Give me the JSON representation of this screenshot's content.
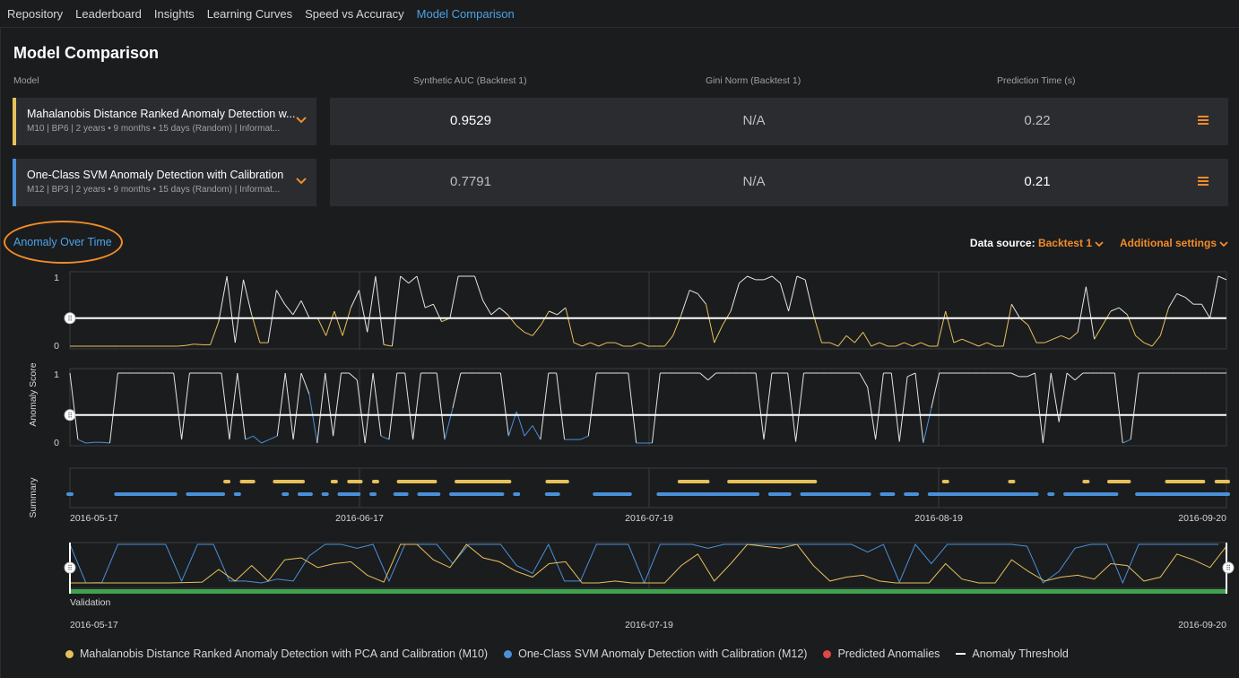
{
  "nav": {
    "tabs": [
      "Repository",
      "Leaderboard",
      "Insights",
      "Learning Curves",
      "Speed vs Accuracy",
      "Model Comparison"
    ],
    "active": "Model Comparison"
  },
  "page_title": "Model Comparison",
  "table": {
    "headers": {
      "model": "Model",
      "auc": "Synthetic AUC (Backtest 1)",
      "gini": "Gini Norm (Backtest 1)",
      "time": "Prediction Time (s)"
    },
    "rows": [
      {
        "name": "Mahalanobis Distance Ranked Anomaly Detection w...",
        "meta": "M10 | BP6 | 2 years • 9 months • 15 days (Random) | Informat...",
        "color": "#e6c15a",
        "auc": "0.9529",
        "gini": "N/A",
        "time": "0.22"
      },
      {
        "name": "One-Class SVM Anomaly Detection with Calibration",
        "meta": "M12 | BP3 | 2 years • 9 months • 15 days (Random) | Informat...",
        "color": "#4a90d9",
        "auc": "0.7791",
        "gini": "N/A",
        "time": "0.21"
      }
    ]
  },
  "section": {
    "title": "Anomaly Over Time"
  },
  "controls": {
    "data_source_label": "Data source:",
    "data_source_value": "Backtest 1",
    "additional_settings": "Additional settings"
  },
  "chart_data": {
    "type": "line",
    "title": "Anomaly Over Time",
    "ylabel": "Anomaly Score",
    "ylim": [
      0,
      1
    ],
    "y_ticks": [
      "1",
      "0"
    ],
    "x_ticks": [
      "2016-05-17",
      "2016-06-17",
      "2016-07-19",
      "2016-08-19",
      "2016-09-20"
    ],
    "summary_label": "Summary",
    "validation_label": "Validation",
    "overview_x_ticks": [
      "2016-05-17",
      "2016-07-19",
      "2016-09-20"
    ],
    "threshold": 0.4,
    "series": [
      {
        "name": "Mahalanobis Distance Ranked Anomaly Detection with PCA and Calibration (M10)",
        "color": "#e6c15a",
        "values": [
          0,
          0,
          0,
          0,
          0,
          0,
          0,
          0,
          0,
          0,
          0,
          0,
          0,
          0,
          0.01,
          0.03,
          0.02,
          0.02,
          0.35,
          1,
          0.05,
          0.95,
          0.45,
          0.05,
          0.05,
          0.8,
          0.6,
          0.45,
          0.65,
          0.4,
          0.4,
          0.15,
          0.5,
          0.15,
          0.55,
          0.8,
          0.2,
          1,
          0.02,
          0,
          1,
          0.9,
          1,
          0.55,
          0.6,
          0.35,
          0.4,
          1,
          1,
          1,
          0.65,
          0.45,
          0.55,
          0.45,
          0.3,
          0.2,
          0.15,
          0.3,
          0.5,
          0.45,
          0.55,
          0.05,
          0,
          0.05,
          0,
          0.05,
          0.05,
          0,
          0,
          0.05,
          0,
          0,
          0,
          0.15,
          0.45,
          0.8,
          0.75,
          0.6,
          0.05,
          0.3,
          0.5,
          0.9,
          1,
          0.95,
          0.95,
          1,
          0.9,
          0.5,
          1,
          0.95,
          0.45,
          0.05,
          0.05,
          0,
          0.15,
          0.05,
          0.2,
          0,
          0.05,
          0,
          0,
          0.05,
          0,
          0.05,
          0,
          0,
          0.5,
          0.05,
          0.1,
          0.05,
          0,
          0.05,
          0,
          0,
          0.6,
          0.4,
          0.3,
          0.05,
          0.05,
          0.1,
          0.15,
          0.1,
          0.2,
          0.85,
          0.1,
          0.3,
          0.5,
          0.55,
          0.45,
          0.15,
          0.05,
          0,
          0.15,
          0.55,
          0.75,
          0.7,
          0.6,
          0.6,
          0.4,
          1,
          0.95
        ]
      },
      {
        "name": "One-Class SVM Anomaly Detection with Calibration (M12)",
        "color": "#4a90d9",
        "values": [
          1,
          0.05,
          0,
          0.01,
          0.01,
          0,
          1,
          1,
          1,
          1,
          1,
          1,
          1,
          1,
          0.05,
          1,
          1,
          1,
          1,
          1,
          0.05,
          1,
          0.05,
          0.1,
          0,
          0.05,
          0.1,
          1,
          0.05,
          1,
          0.7,
          0,
          1,
          0.1,
          1,
          1,
          0.9,
          0,
          1,
          0.1,
          0.05,
          1,
          1,
          0.05,
          1,
          1,
          1,
          0.05,
          0.5,
          1,
          1,
          1,
          1,
          1,
          1,
          0.1,
          0.45,
          0.1,
          0.25,
          0.05,
          1,
          1,
          0.05,
          0.05,
          0.05,
          0.1,
          1,
          1,
          1,
          1,
          1,
          0,
          0,
          0,
          1,
          1,
          1,
          1,
          1,
          1,
          0.9,
          1,
          1,
          1,
          1,
          1,
          1,
          0.05,
          1,
          1,
          1,
          0.02,
          1,
          1,
          1,
          1,
          1,
          1,
          1,
          1,
          0.8,
          0.05,
          1,
          1,
          0.02,
          0.95,
          1,
          0,
          0.5,
          1,
          1,
          1,
          1,
          1,
          1,
          1,
          1,
          1,
          1,
          0.95,
          0.95,
          1,
          0,
          1,
          0.3,
          1,
          0.9,
          1,
          1,
          1,
          1,
          1,
          0,
          0.05,
          1,
          1,
          1,
          1,
          1,
          1,
          1,
          1,
          1,
          1,
          1,
          1
        ]
      }
    ],
    "legend": [
      {
        "label": "Mahalanobis Distance Ranked Anomaly Detection with PCA and Calibration (M10)",
        "color": "#e6c15a"
      },
      {
        "label": "One-Class SVM Anomaly Detection with Calibration (M12)",
        "color": "#4a90d9"
      },
      {
        "label": "Predicted Anomalies",
        "color": "#e04848"
      },
      {
        "label": "Anomaly Threshold",
        "color": "#ffffff"
      }
    ]
  }
}
